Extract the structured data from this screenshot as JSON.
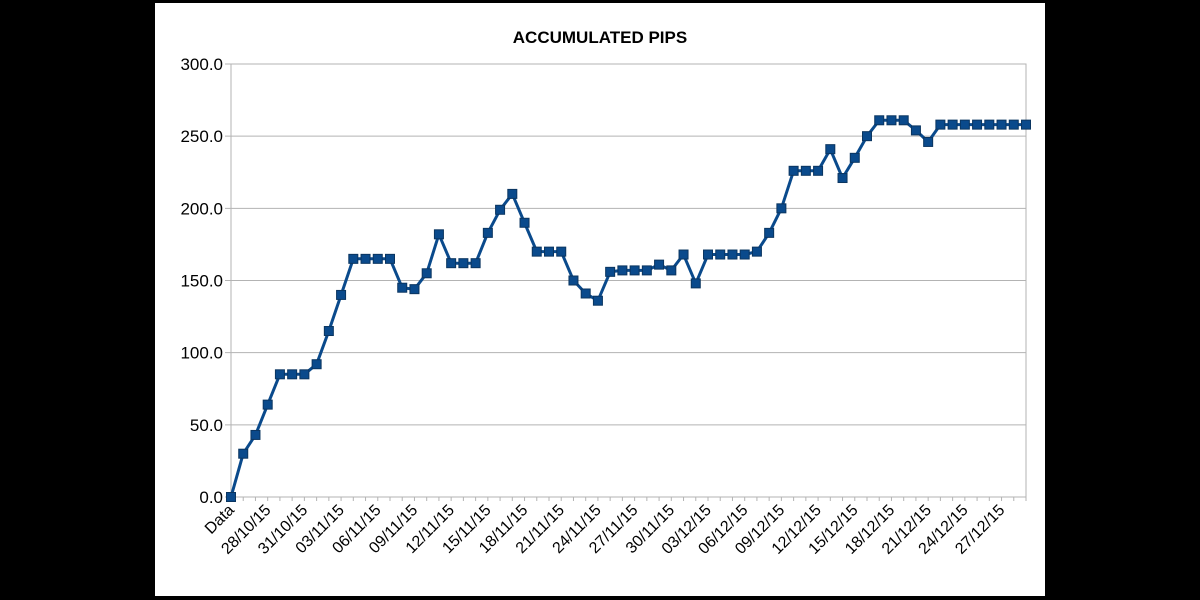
{
  "chart_data": {
    "type": "line",
    "title": "ACCUMULATED PIPS",
    "xlabel": "",
    "ylabel": "",
    "ylim": [
      0,
      300
    ],
    "yticks": [
      "0.0",
      "50.0",
      "100.0",
      "150.0",
      "200.0",
      "250.0",
      "300.0"
    ],
    "grid": true,
    "legend": "none",
    "marker": "square",
    "x_labels": [
      "Data",
      "28/10/15",
      "31/10/15",
      "03/11/15",
      "06/11/15",
      "09/11/15",
      "12/11/15",
      "15/11/15",
      "18/11/15",
      "21/11/15",
      "24/11/15",
      "27/11/15",
      "30/11/15",
      "03/12/15",
      "06/12/15",
      "09/12/15",
      "12/12/15",
      "15/12/15",
      "18/12/15",
      "21/12/15",
      "24/12/15",
      "27/12/15"
    ],
    "series": [
      {
        "color": "#0a4a8c",
        "values": [
          0,
          30,
          43,
          64,
          85,
          85,
          85,
          92,
          115,
          140,
          165,
          165,
          165,
          165,
          145,
          144,
          155,
          182,
          162,
          162,
          162,
          183,
          199,
          210,
          190,
          170,
          170,
          170,
          150,
          141,
          136,
          156,
          157,
          157,
          157,
          161,
          157,
          168,
          148,
          168,
          168,
          168,
          168,
          170,
          183,
          200,
          226,
          226,
          226,
          241,
          221,
          235,
          250,
          261,
          261,
          261,
          254,
          246,
          258,
          258,
          258,
          258,
          258,
          258,
          258,
          258
        ]
      }
    ]
  }
}
